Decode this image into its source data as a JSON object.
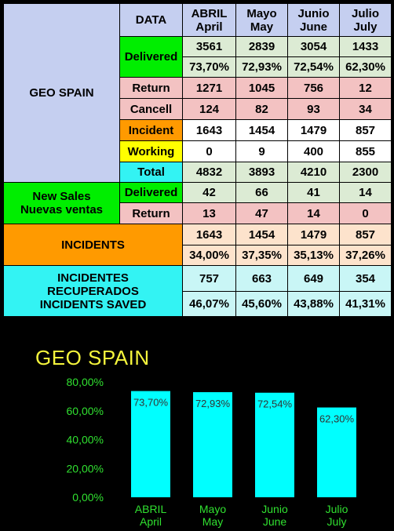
{
  "colors": {
    "lavender": "#c5cff0",
    "green": "#00ee00",
    "pink": "#f3c2c2",
    "light_green": "#dcebd4",
    "orange": "#ff9a00",
    "yellow": "#ffff00",
    "cyan": "#33f3f3",
    "peach": "#fde3cc",
    "light_cyan": "#c9f6f6",
    "white": "#ffffff",
    "bar": "#00ffff",
    "chart_title": "#f5f53c",
    "axis_label": "#30e030"
  },
  "table": {
    "header": {
      "data_label": "DATA",
      "months": [
        {
          "line1": "ABRIL",
          "line2": "April"
        },
        {
          "line1": "Mayo",
          "line2": "May"
        },
        {
          "line1": "Junio",
          "line2": "June"
        },
        {
          "line1": "Julio",
          "line2": "July"
        }
      ]
    },
    "geo_spain": {
      "label": "GEO SPAIN",
      "delivered": {
        "label": "Delivered",
        "values": [
          "3561",
          "2839",
          "3054",
          "1433"
        ],
        "percents": [
          "73,70%",
          "72,93%",
          "72,54%",
          "62,30%"
        ]
      },
      "return": {
        "label": "Return",
        "values": [
          "1271",
          "1045",
          "756",
          "12"
        ]
      },
      "cancell": {
        "label": "Cancell",
        "values": [
          "124",
          "82",
          "93",
          "34"
        ]
      },
      "incident": {
        "label": "Incident",
        "values": [
          "1643",
          "1454",
          "1479",
          "857"
        ]
      },
      "working": {
        "label": "Working",
        "values": [
          "0",
          "9",
          "400",
          "855"
        ]
      },
      "total": {
        "label": "Total",
        "values": [
          "4832",
          "3893",
          "4210",
          "2300"
        ]
      }
    },
    "new_sales": {
      "label_line1": "New Sales",
      "label_line2": "Nuevas ventas",
      "delivered": {
        "label": "Delivered",
        "values": [
          "42",
          "66",
          "41",
          "14"
        ]
      },
      "return": {
        "label": "Return",
        "values": [
          "13",
          "47",
          "14",
          "0"
        ]
      }
    },
    "incidents": {
      "label": "INCIDENTS",
      "values": [
        "1643",
        "1454",
        "1479",
        "857"
      ],
      "percents": [
        "34,00%",
        "37,35%",
        "35,13%",
        "37,26%"
      ]
    },
    "saved": {
      "label_line1": "INCIDENTES",
      "label_line2": "RECUPERADOS",
      "label_line3": "INCIDENTS SAVED",
      "values": [
        "757",
        "663",
        "649",
        "354"
      ],
      "percents": [
        "46,07%",
        "45,60%",
        "43,88%",
        "41,31%"
      ]
    }
  },
  "chart_data": {
    "type": "bar",
    "title": "GEO SPAIN",
    "categories": [
      {
        "line1": "ABRIL",
        "line2": "April"
      },
      {
        "line1": "Mayo",
        "line2": "May"
      },
      {
        "line1": "Junio",
        "line2": "June"
      },
      {
        "line1": "Julio",
        "line2": "July"
      }
    ],
    "values": [
      73.7,
      72.93,
      72.54,
      62.3
    ],
    "data_labels": [
      "73,70%",
      "72,93%",
      "72,54%",
      "62,30%"
    ],
    "ylim": [
      0,
      80
    ],
    "y_ticks": [
      "0,00%",
      "20,00%",
      "40,00%",
      "60,00%",
      "80,00%"
    ],
    "grid": false,
    "legend": "none"
  }
}
